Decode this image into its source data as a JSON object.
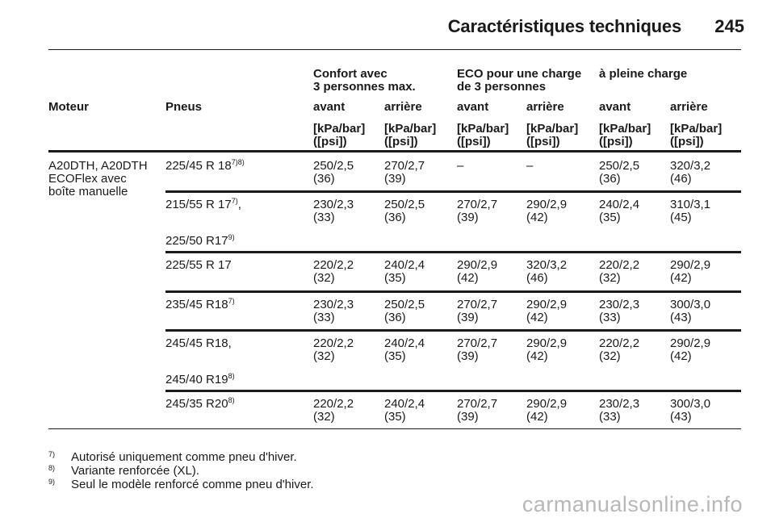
{
  "header": {
    "title": "Caractéristiques techniques",
    "page_number": "245"
  },
  "table": {
    "groups": [
      "Confort avec\n3 personnes max.",
      "ECO pour une charge\nde 3 personnes",
      "à pleine charge"
    ],
    "col_moteur": "Moteur",
    "col_pneus": "Pneus",
    "sub_headers": [
      "avant",
      "arrière",
      "avant",
      "arrière",
      "avant",
      "arrière"
    ],
    "units": [
      "[kPa/bar]\n([psi])",
      "[kPa/bar]\n([psi])",
      "[kPa/bar]\n([psi])",
      "[kPa/bar]\n([psi])",
      "[kPa/bar]\n([psi])",
      "[kPa/bar]\n([psi])"
    ],
    "engine": "A20DTH, A20DTH\nECOFlex avec\nboîte manuelle",
    "rows": [
      {
        "tyre": "225/45 R 18",
        "sup": "7)8)",
        "tyre2": "",
        "sup2": "",
        "values": [
          "250/2,5\n(36)",
          "270/2,7\n(39)",
          "–",
          "–",
          "250/2,5\n(36)",
          "320/3,2\n(46)"
        ]
      },
      {
        "tyre": "215/55 R 17",
        "sup": "7)",
        "suffix": ",",
        "tyre2": "225/50 R17",
        "sup2": "9)",
        "values": [
          "230/2,3\n(33)",
          "250/2,5\n(36)",
          "270/2,7\n(39)",
          "290/2,9\n(42)",
          "240/2,4\n(35)",
          "310/3,1\n(45)"
        ]
      },
      {
        "tyre": "225/55 R 17",
        "sup": "",
        "tyre2": "",
        "sup2": "",
        "values": [
          "220/2,2\n(32)",
          "240/2,4\n(35)",
          "290/2,9\n(42)",
          "320/3,2\n(46)",
          "220/2,2\n(32)",
          "290/2,9\n(42)"
        ]
      },
      {
        "tyre": "235/45 R18",
        "sup": "7)",
        "tyre2": "",
        "sup2": "",
        "values": [
          "230/2,3\n(33)",
          "250/2,5\n(36)",
          "270/2,7\n(39)",
          "290/2,9\n(42)",
          "230/2,3\n(33)",
          "300/3,0\n(43)"
        ]
      },
      {
        "tyre": "245/45 R18",
        "sup": "",
        "suffix": ",",
        "tyre2": "245/40 R19",
        "sup2": "8)",
        "values": [
          "220/2,2\n(32)",
          "240/2,4\n(35)",
          "270/2,7\n(39)",
          "290/2,9\n(42)",
          "220/2,2\n(32)",
          "290/2,9\n(42)"
        ]
      },
      {
        "tyre": "245/35 R20",
        "sup": "8)",
        "tyre2": "",
        "sup2": "",
        "values": [
          "220/2,2\n(32)",
          "240/2,4\n(35)",
          "270/2,7\n(39)",
          "290/2,9\n(42)",
          "230/2,3\n(33)",
          "300/3,0\n(43)"
        ]
      }
    ]
  },
  "footnotes": [
    {
      "num": "7)",
      "text": "Autorisé uniquement comme pneu d'hiver."
    },
    {
      "num": "8)",
      "text": "Variante renforcée (XL)."
    },
    {
      "num": "9)",
      "text": "Seul le modèle renforcé comme pneu d'hiver."
    }
  ],
  "watermark": "carmanualsonline.info"
}
